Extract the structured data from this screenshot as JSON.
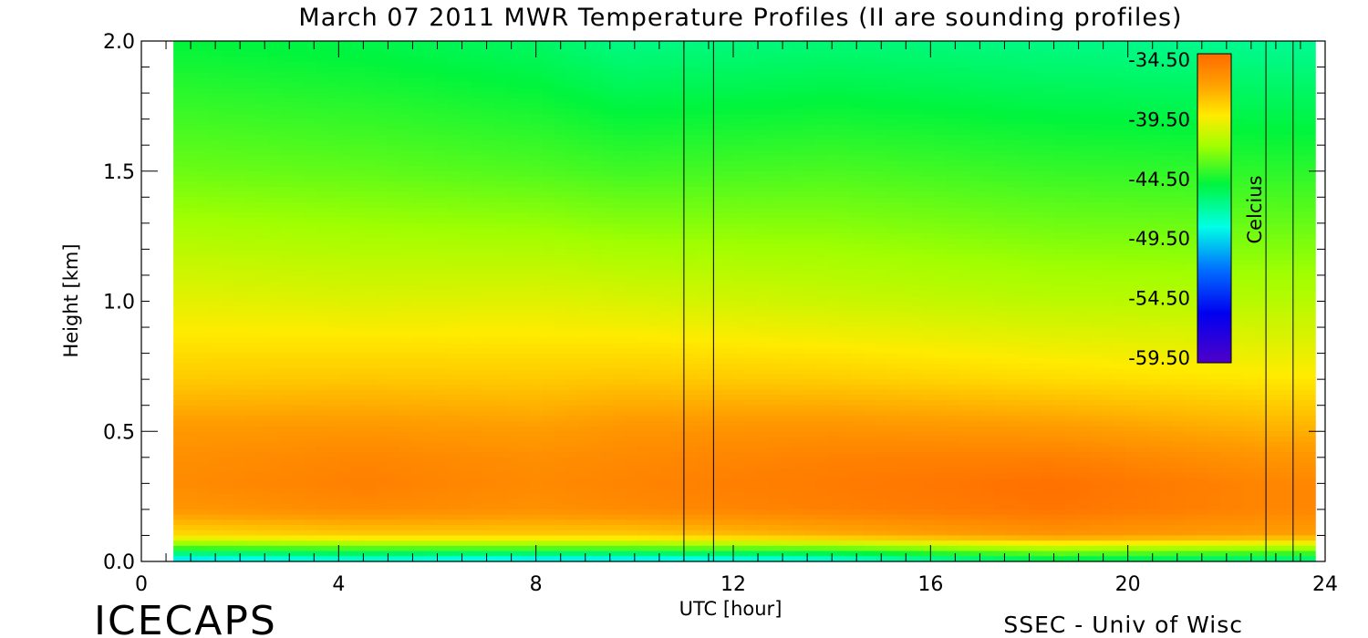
{
  "chart_data": {
    "type": "heatmap",
    "title": "March 07 2011 MWR Temperature Profiles (II are sounding profiles)",
    "xlabel": "UTC [hour]",
    "ylabel": "Height [km]",
    "xlim": [
      0,
      24
    ],
    "ylim": [
      0.0,
      2.0
    ],
    "x_ticks": [
      "0",
      "4",
      "8",
      "12",
      "16",
      "20",
      "24"
    ],
    "y_ticks": [
      "0.0",
      "0.5",
      "1.0",
      "1.5",
      "2.0"
    ],
    "data_x_range": [
      0.65,
      23.8
    ],
    "colorbar": {
      "label": "Celcius",
      "ticks": [
        "-34.50",
        "-39.50",
        "-44.50",
        "-49.50",
        "-54.50",
        "-59.50"
      ],
      "range": [
        -59.5,
        -34.5
      ]
    },
    "temperature_grid": {
      "heights_km": [
        0.0,
        0.05,
        0.1,
        0.2,
        0.3,
        0.4,
        0.5,
        0.7,
        1.0,
        1.5,
        2.0
      ],
      "times_hour": [
        1,
        4.5,
        8,
        9.8,
        14,
        18.5,
        23
      ],
      "values_c": [
        [
          -50.0,
          -49.0,
          -50.0,
          -50.0,
          -49.0,
          -46.0,
          -47.0
        ],
        [
          -44.0,
          -43.5,
          -43.5,
          -43.5,
          -43.0,
          -41.5,
          -42.0
        ],
        [
          -39.0,
          -38.5,
          -38.5,
          -38.5,
          -37.5,
          -36.5,
          -37.0
        ],
        [
          -36.5,
          -36.0,
          -36.3,
          -36.0,
          -35.5,
          -35.0,
          -35.8
        ],
        [
          -36.0,
          -35.5,
          -36.0,
          -35.7,
          -35.3,
          -34.8,
          -35.8
        ],
        [
          -36.2,
          -35.8,
          -36.2,
          -36.0,
          -35.6,
          -35.5,
          -36.5
        ],
        [
          -36.6,
          -36.5,
          -36.8,
          -36.4,
          -36.3,
          -36.6,
          -37.5
        ],
        [
          -38.4,
          -38.3,
          -38.4,
          -38.3,
          -38.5,
          -39.0,
          -39.4
        ],
        [
          -40.2,
          -40.4,
          -40.3,
          -40.5,
          -40.9,
          -41.3,
          -41.4
        ],
        [
          -43.0,
          -43.2,
          -43.5,
          -43.8,
          -43.6,
          -44.0,
          -44.2
        ],
        [
          -45.0,
          -45.3,
          -45.8,
          -46.5,
          -46.2,
          -46.5,
          -46.8
        ]
      ]
    },
    "sounding_times_hour": [
      11.0,
      11.6,
      22.8,
      23.35
    ]
  },
  "footer": {
    "left": "ICECAPS",
    "right": "SSEC - Univ of Wisc"
  },
  "colors": {
    "frame": "#000000",
    "background": "#ffffff"
  }
}
